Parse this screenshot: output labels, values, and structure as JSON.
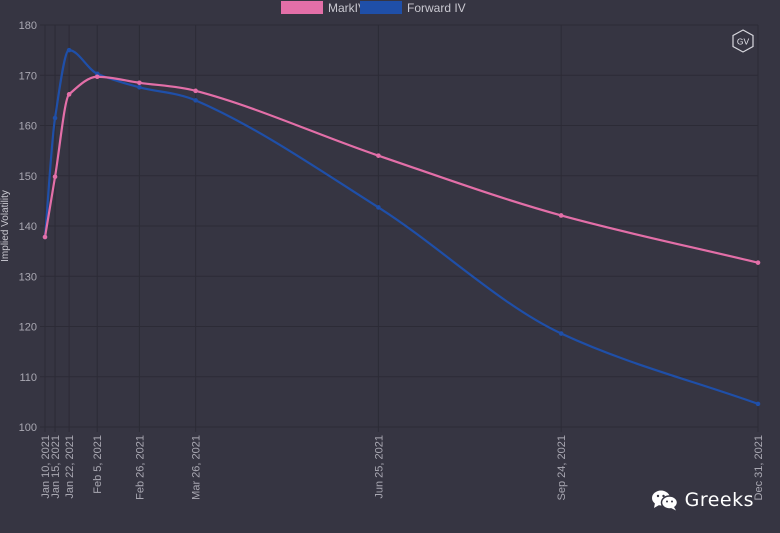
{
  "chart_data": {
    "type": "line",
    "ylabel": "Implied Volatility",
    "xlabel": "",
    "ylim": [
      100,
      180
    ],
    "yticks": [
      100,
      110,
      120,
      130,
      140,
      150,
      160,
      170,
      180
    ],
    "legend_position": "top-center",
    "grid": true,
    "x": [
      "Jan 10, 2021",
      "Jan 15, 2021",
      "Jan 22, 2021",
      "Feb 5, 2021",
      "Feb 26, 2021",
      "Mar 26, 2021",
      "Jun 25, 2021",
      "Sep 24, 2021",
      "Dec 31, 2021"
    ],
    "x_days": [
      0,
      5,
      12,
      26,
      47,
      75,
      166,
      257,
      355
    ],
    "series": [
      {
        "name": "MarkIV",
        "color": "#e36fa8",
        "values": [
          137.8,
          149.8,
          166.2,
          169.7,
          168.5,
          166.9,
          154.0,
          142.1,
          132.7
        ]
      },
      {
        "name": "Forward IV",
        "color": "#1f4fa8",
        "values": [
          137.8,
          161.5,
          175.0,
          170.3,
          167.6,
          165.0,
          143.7,
          118.6,
          104.6
        ]
      }
    ]
  },
  "brand": {
    "text": "Greeks",
    "logo_text": "GV"
  }
}
